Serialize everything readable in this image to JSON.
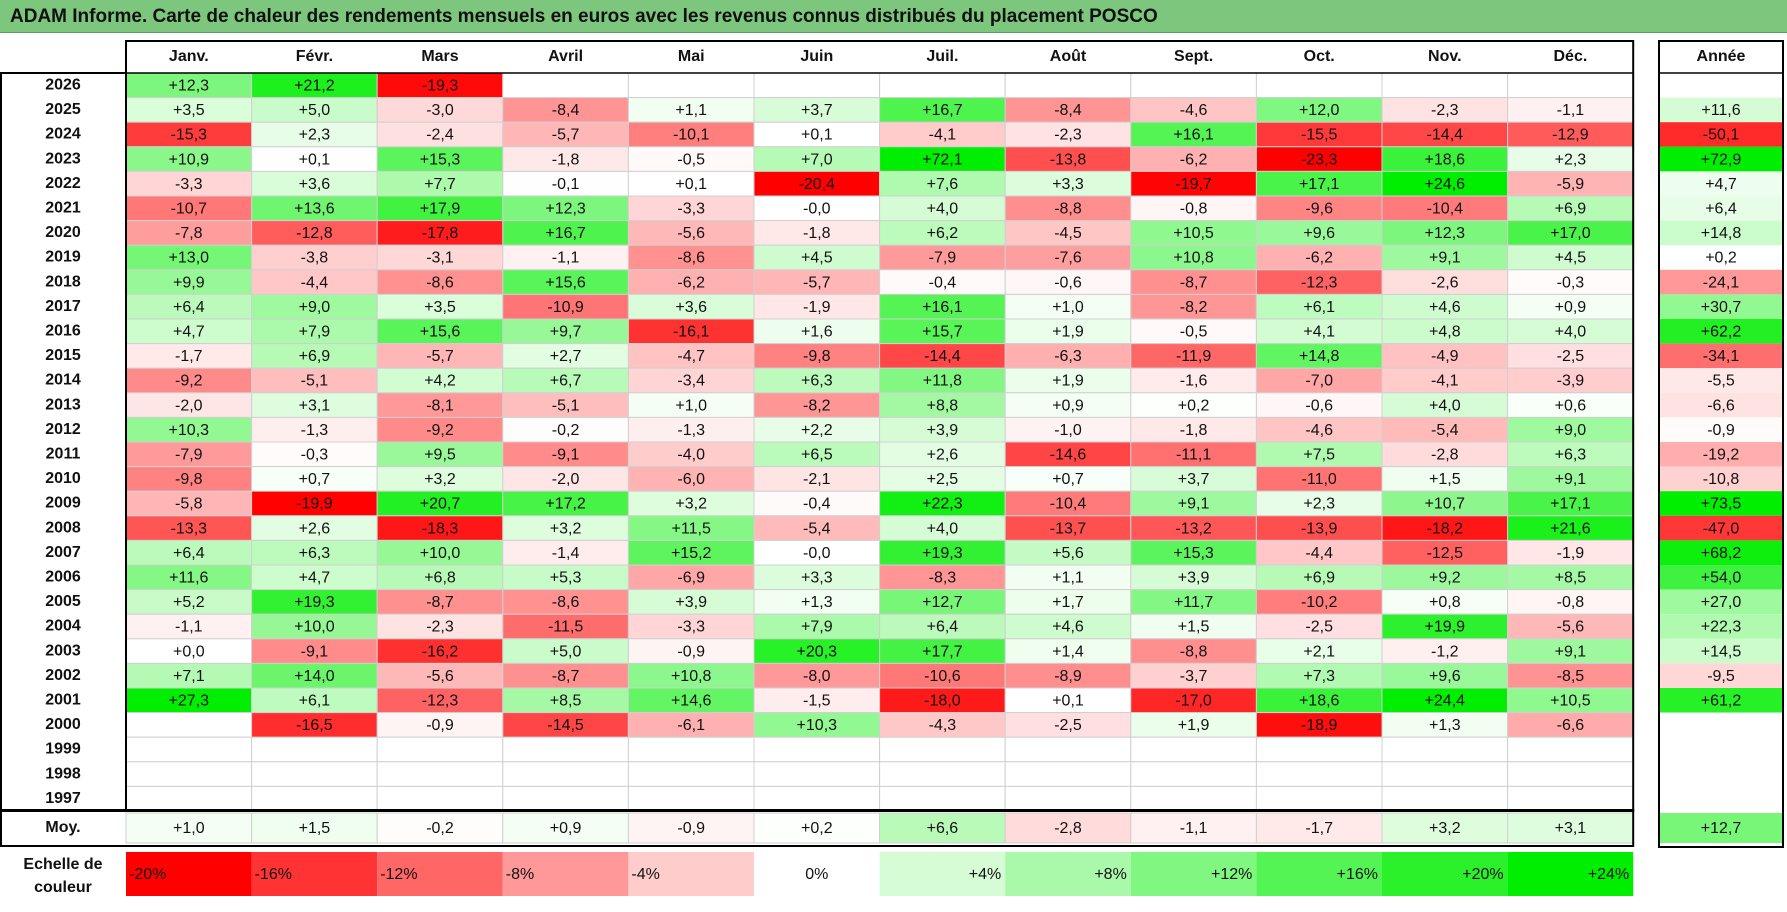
{
  "chart_data": {
    "type": "heatmap",
    "title": "ADAM Informe. Carte de chaleur des rendements mensuels en euros avec les revenus connus distribués du placement POSCO",
    "months": [
      "Janv.",
      "Févr.",
      "Mars",
      "Avril",
      "Mai",
      "Juin",
      "Juil.",
      "Août",
      "Sept.",
      "Oct.",
      "Nov.",
      "Déc."
    ],
    "year_header": "Année",
    "rows": [
      {
        "year": "2026",
        "values": [
          "+12,3",
          "+21,2",
          "-19,3",
          null,
          null,
          null,
          null,
          null,
          null,
          null,
          null,
          null
        ],
        "annual": null
      },
      {
        "year": "2025",
        "values": [
          "+3,5",
          "+5,0",
          "-3,0",
          "-8,4",
          "+1,1",
          "+3,7",
          "+16,7",
          "-8,4",
          "-4,6",
          "+12,0",
          "-2,3",
          "-1,1"
        ],
        "annual": "+11,6"
      },
      {
        "year": "2024",
        "values": [
          "-15,3",
          "+2,3",
          "-2,4",
          "-5,7",
          "-10,1",
          "+0,1",
          "-4,1",
          "-2,3",
          "+16,1",
          "-15,5",
          "-14,4",
          "-12,9"
        ],
        "annual": "-50,1"
      },
      {
        "year": "2023",
        "values": [
          "+10,9",
          "+0,1",
          "+15,3",
          "-1,8",
          "-0,5",
          "+7,0",
          "+72,1",
          "-13,8",
          "-6,2",
          "-23,3",
          "+18,6",
          "+2,3"
        ],
        "annual": "+72,9"
      },
      {
        "year": "2022",
        "values": [
          "-3,3",
          "+3,6",
          "+7,7",
          "-0,1",
          "+0,1",
          "-20,4",
          "+7,6",
          "+3,3",
          "-19,7",
          "+17,1",
          "+24,6",
          "-5,9"
        ],
        "annual": "+4,7"
      },
      {
        "year": "2021",
        "values": [
          "-10,7",
          "+13,6",
          "+17,9",
          "+12,3",
          "-3,3",
          "-0,0",
          "+4,0",
          "-8,8",
          "-0,8",
          "-9,6",
          "-10,4",
          "+6,9"
        ],
        "annual": "+6,4"
      },
      {
        "year": "2020",
        "values": [
          "-7,8",
          "-12,8",
          "-17,8",
          "+16,7",
          "-5,6",
          "-1,8",
          "+6,2",
          "-4,5",
          "+10,5",
          "+9,6",
          "+12,3",
          "+17,0"
        ],
        "annual": "+14,8"
      },
      {
        "year": "2019",
        "values": [
          "+13,0",
          "-3,8",
          "-3,1",
          "-1,1",
          "-8,6",
          "+4,5",
          "-7,9",
          "-7,6",
          "+10,8",
          "-6,2",
          "+9,1",
          "+4,5"
        ],
        "annual": "+0,2"
      },
      {
        "year": "2018",
        "values": [
          "+9,9",
          "-4,4",
          "-8,6",
          "+15,6",
          "-6,2",
          "-5,7",
          "-0,4",
          "-0,6",
          "-8,7",
          "-12,3",
          "-2,6",
          "-0,3"
        ],
        "annual": "-24,1"
      },
      {
        "year": "2017",
        "values": [
          "+6,4",
          "+9,0",
          "+3,5",
          "-10,9",
          "+3,6",
          "-1,9",
          "+16,1",
          "+1,0",
          "-8,2",
          "+6,1",
          "+4,6",
          "+0,9"
        ],
        "annual": "+30,7"
      },
      {
        "year": "2016",
        "values": [
          "+4,7",
          "+7,9",
          "+15,6",
          "+9,7",
          "-16,1",
          "+1,6",
          "+15,7",
          "+1,9",
          "-0,5",
          "+4,1",
          "+4,8",
          "+4,0"
        ],
        "annual": "+62,2"
      },
      {
        "year": "2015",
        "values": [
          "-1,7",
          "+6,9",
          "-5,7",
          "+2,7",
          "-4,7",
          "-9,8",
          "-14,4",
          "-6,3",
          "-11,9",
          "+14,8",
          "-4,9",
          "-2,5"
        ],
        "annual": "-34,1"
      },
      {
        "year": "2014",
        "values": [
          "-9,2",
          "-5,1",
          "+4,2",
          "+6,7",
          "-3,4",
          "+6,3",
          "+11,8",
          "+1,9",
          "-1,6",
          "-7,0",
          "-4,1",
          "-3,9"
        ],
        "annual": "-5,5"
      },
      {
        "year": "2013",
        "values": [
          "-2,0",
          "+3,1",
          "-8,1",
          "-5,1",
          "+1,0",
          "-8,2",
          "+8,8",
          "+0,9",
          "+0,2",
          "-0,6",
          "+4,0",
          "+0,6"
        ],
        "annual": "-6,6"
      },
      {
        "year": "2012",
        "values": [
          "+10,3",
          "-1,3",
          "-9,2",
          "-0,2",
          "-1,3",
          "+2,2",
          "+3,9",
          "-1,0",
          "-1,8",
          "-4,6",
          "-5,4",
          "+9,0"
        ],
        "annual": "-0,9"
      },
      {
        "year": "2011",
        "values": [
          "-7,9",
          "-0,3",
          "+9,5",
          "-9,1",
          "-4,0",
          "+6,5",
          "+2,6",
          "-14,6",
          "-11,1",
          "+7,5",
          "-2,8",
          "+6,3"
        ],
        "annual": "-19,2"
      },
      {
        "year": "2010",
        "values": [
          "-9,8",
          "+0,7",
          "+3,2",
          "-2,0",
          "-6,0",
          "-2,1",
          "+2,5",
          "+0,7",
          "+3,7",
          "-11,0",
          "+1,5",
          "+9,1"
        ],
        "annual": "-10,8"
      },
      {
        "year": "2009",
        "values": [
          "-5,8",
          "-19,9",
          "+20,7",
          "+17,2",
          "+3,2",
          "-0,4",
          "+22,3",
          "-10,4",
          "+9,1",
          "+2,3",
          "+10,7",
          "+17,1"
        ],
        "annual": "+73,5"
      },
      {
        "year": "2008",
        "values": [
          "-13,3",
          "+2,6",
          "-18,3",
          "+3,2",
          "+11,5",
          "-5,4",
          "+4,0",
          "-13,7",
          "-13,2",
          "-13,9",
          "-18,2",
          "+21,6"
        ],
        "annual": "-47,0"
      },
      {
        "year": "2007",
        "values": [
          "+6,4",
          "+6,3",
          "+10,0",
          "-1,4",
          "+15,2",
          "-0,0",
          "+19,3",
          "+5,6",
          "+15,3",
          "-4,4",
          "-12,5",
          "-1,9"
        ],
        "annual": "+68,2"
      },
      {
        "year": "2006",
        "values": [
          "+11,6",
          "+4,7",
          "+6,8",
          "+5,3",
          "-6,9",
          "+3,3",
          "-8,3",
          "+1,1",
          "+3,9",
          "+6,9",
          "+9,2",
          "+8,5"
        ],
        "annual": "+54,0"
      },
      {
        "year": "2005",
        "values": [
          "+5,2",
          "+19,3",
          "-8,7",
          "-8,6",
          "+3,9",
          "+1,3",
          "+12,7",
          "+1,7",
          "+11,7",
          "-10,2",
          "+0,8",
          "-0,8"
        ],
        "annual": "+27,0"
      },
      {
        "year": "2004",
        "values": [
          "-1,1",
          "+10,0",
          "-2,3",
          "-11,5",
          "-3,3",
          "+7,9",
          "+6,4",
          "+4,6",
          "+1,5",
          "-2,5",
          "+19,9",
          "-5,6"
        ],
        "annual": "+22,3"
      },
      {
        "year": "2003",
        "values": [
          "+0,0",
          "-9,1",
          "-16,2",
          "+5,0",
          "-0,9",
          "+20,3",
          "+17,7",
          "+1,4",
          "-8,8",
          "+2,1",
          "-1,2",
          "+9,1"
        ],
        "annual": "+14,5"
      },
      {
        "year": "2002",
        "values": [
          "+7,1",
          "+14,0",
          "-5,6",
          "-8,7",
          "+10,8",
          "-8,0",
          "-10,6",
          "-8,9",
          "-3,7",
          "+7,3",
          "+9,6",
          "-8,5"
        ],
        "annual": "-9,5"
      },
      {
        "year": "2001",
        "values": [
          "+27,3",
          "+6,1",
          "-12,3",
          "+8,5",
          "+14,6",
          "-1,5",
          "-18,0",
          "+0,1",
          "-17,0",
          "+18,6",
          "+24,4",
          "+10,5"
        ],
        "annual": "+61,2"
      },
      {
        "year": "2000",
        "values": [
          null,
          "-16,5",
          "-0,9",
          "-14,5",
          "-6,1",
          "+10,3",
          "-4,3",
          "-2,5",
          "+1,9",
          "-18,9",
          "+1,3",
          "-6,6"
        ],
        "annual": null
      },
      {
        "year": "1999",
        "values": [
          null,
          null,
          null,
          null,
          null,
          null,
          null,
          null,
          null,
          null,
          null,
          null
        ],
        "annual": null
      },
      {
        "year": "1998",
        "values": [
          null,
          null,
          null,
          null,
          null,
          null,
          null,
          null,
          null,
          null,
          null,
          null
        ],
        "annual": null
      },
      {
        "year": "1997",
        "values": [
          null,
          null,
          null,
          null,
          null,
          null,
          null,
          null,
          null,
          null,
          null,
          null
        ],
        "annual": null
      }
    ],
    "average": {
      "label": "Moy.",
      "values": [
        "+1,0",
        "+1,5",
        "-0,2",
        "+0,9",
        "-0,9",
        "+0,2",
        "+6,6",
        "-2,8",
        "-1,1",
        "-1,7",
        "+3,2",
        "+3,1"
      ],
      "annual": "+12,7"
    },
    "color_scale": {
      "label_line1": "Echelle de",
      "label_line2": "couleur",
      "stops": [
        "-20%",
        "-16%",
        "-12%",
        "-8%",
        "-4%",
        "0%",
        "+4%",
        "+8%",
        "+12%",
        "+16%",
        "+20%",
        "+24%"
      ],
      "stop_values": [
        -20,
        -16,
        -12,
        -8,
        -4,
        0,
        4,
        8,
        12,
        16,
        20,
        24
      ]
    },
    "colors": {
      "negative_max": "#ff0000",
      "neutral": "#ffffff",
      "positive_max": "#00ee00",
      "title_bar": "#7dc67d",
      "grid_line": "#d0d0d0",
      "border": "#000000"
    }
  }
}
